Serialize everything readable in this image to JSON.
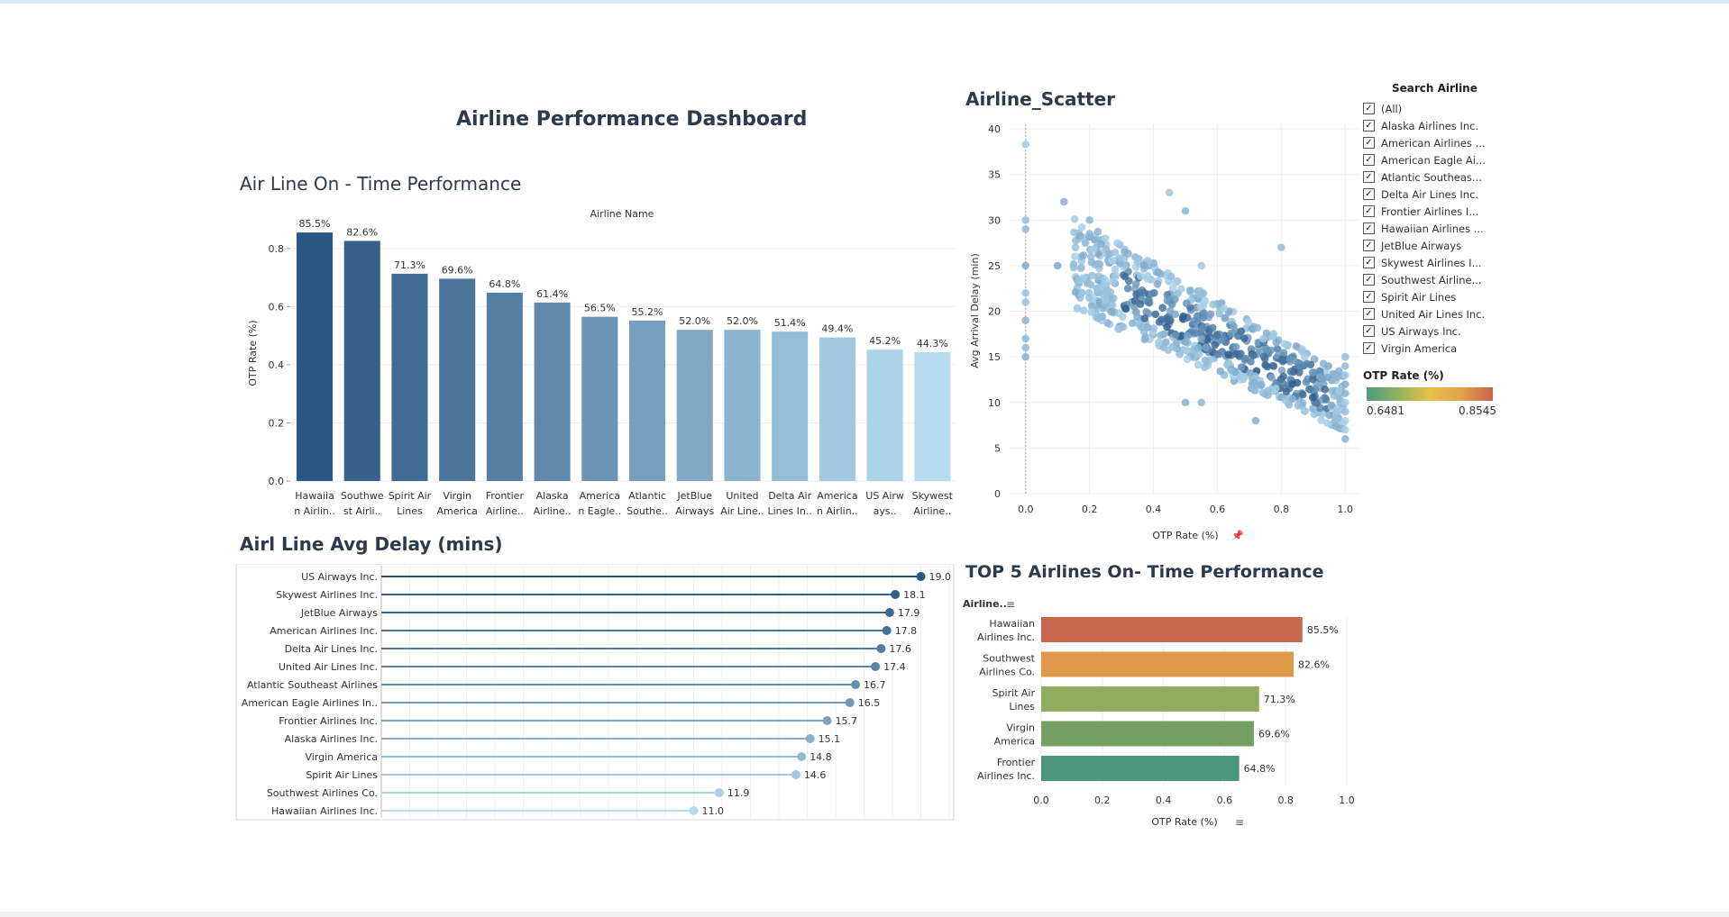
{
  "dashboard_title": "Airline Performance Dashboard",
  "bar_chart": {
    "title": "Air Line On - Time Performance",
    "chart_data": {
      "type": "bar",
      "title": "Air Line On - Time Performance",
      "subtitle": "Airline Name",
      "ylabel": "OTP Rate (%)",
      "ylim": [
        0,
        0.88
      ],
      "yticks": [
        "0.0",
        "0.2",
        "0.4",
        "0.6",
        "0.8"
      ],
      "categories": [
        [
          "Hawaiia",
          "n Airlin.."
        ],
        [
          "Southwe",
          "st Airli.."
        ],
        [
          "Spirit Air",
          "Lines"
        ],
        [
          "Virgin",
          "America"
        ],
        [
          "Frontier",
          "Airline.."
        ],
        [
          "Alaska",
          "Airline.."
        ],
        [
          "America",
          "n Eagle.."
        ],
        [
          "Atlantic",
          "Southe.."
        ],
        [
          "JetBlue",
          "Airways"
        ],
        [
          "United",
          "Air Line.."
        ],
        [
          "Delta Air",
          "Lines In.."
        ],
        [
          "America",
          "n Airlin.."
        ],
        [
          "US Airw",
          "ays.."
        ],
        [
          "Skywest",
          "Airline.."
        ]
      ],
      "values": [
        0.855,
        0.826,
        0.713,
        0.696,
        0.648,
        0.614,
        0.565,
        0.552,
        0.52,
        0.52,
        0.514,
        0.494,
        0.452,
        0.443
      ],
      "labels": [
        "85.5%",
        "82.6%",
        "71.3%",
        "69.6%",
        "64.8%",
        "61.4%",
        "56.5%",
        "55.2%",
        "52.0%",
        "52.0%",
        "51.4%",
        "49.4%",
        "45.2%",
        "44.3%"
      ]
    }
  },
  "delay_chart": {
    "title": "Airl Line Avg Delay (mins)",
    "chart_data": {
      "type": "bar",
      "categories": [
        "US Airways Inc.",
        "Skywest Airlines Inc.",
        "JetBlue Airways",
        "American Airlines Inc.",
        "Delta Air Lines Inc.",
        "United Air Lines Inc.",
        "Atlantic Southeast Airlines",
        "American Eagle Airlines In..",
        "Frontier Airlines Inc.",
        "Alaska Airlines Inc.",
        "Virgin America",
        "Spirit Air Lines",
        "Southwest Airlines Co.",
        "Hawaiian Airlines Inc."
      ],
      "values": [
        19.0,
        18.1,
        17.9,
        17.8,
        17.6,
        17.4,
        16.7,
        16.5,
        15.7,
        15.1,
        14.8,
        14.6,
        11.9,
        11.0
      ],
      "labels": [
        "19.0",
        "18.1",
        "17.9",
        "17.8",
        "17.6",
        "17.4",
        "16.7",
        "16.5",
        "15.7",
        "15.1",
        "14.8",
        "14.6",
        "11.9",
        "11.0"
      ],
      "xlim": [
        0,
        20
      ]
    }
  },
  "scatter_chart": {
    "title": "Airline_Scatter",
    "chart_data": {
      "type": "scatter",
      "xlabel": "OTP Rate (%)",
      "ylabel": "Avg Arrival Delay (min)",
      "xlim": [
        -0.05,
        1.05
      ],
      "ylim": [
        0,
        40
      ],
      "xticks": [
        "0.0",
        "0.2",
        "0.4",
        "0.6",
        "0.8",
        "1.0"
      ],
      "yticks": [
        "0",
        "5",
        "10",
        "15",
        "20",
        "25",
        "30",
        "35",
        "40"
      ]
    }
  },
  "filter": {
    "title": "Search Airline",
    "check_mark": "✓",
    "items": [
      "(All)",
      "Alaska Airlines Inc.",
      "American Airlines ...",
      "American Eagle Ai...",
      "Atlantic Southeas...",
      "Delta Air Lines Inc.",
      "Frontier Airlines I...",
      "Hawaiian Airlines ...",
      "JetBlue Airways",
      "Skywest Airlines I...",
      "Southwest Airline...",
      "Spirit Air Lines",
      "United Air Lines Inc.",
      "US Airways Inc.",
      "Virgin America"
    ]
  },
  "legend": {
    "title": "OTP Rate (%)",
    "min": "0.6481",
    "max": "0.8545"
  },
  "top5_chart": {
    "title": "TOP 5 Airlines On- Time Performance",
    "row_header": "Airline..",
    "chart_data": {
      "type": "bar",
      "xlabel": "OTP Rate (%)",
      "xlim": [
        0,
        1.0
      ],
      "xticks": [
        "0.0",
        "0.2",
        "0.4",
        "0.6",
        "0.8",
        "1.0"
      ],
      "categories": [
        [
          "Hawaiian",
          "Airlines Inc."
        ],
        [
          "Southwest",
          "Airlines Co."
        ],
        [
          "Spirit Air",
          "Lines"
        ],
        [
          "Virgin",
          "America"
        ],
        [
          "Frontier",
          "Airlines Inc."
        ]
      ],
      "values": [
        0.855,
        0.826,
        0.713,
        0.696,
        0.648
      ],
      "labels": [
        "85.5%",
        "82.6%",
        "71.3%",
        "69.6%",
        "64.8%"
      ],
      "colors": [
        "#c6674e",
        "#e0994a",
        "#8fad5c",
        "#76a062",
        "#4c977e"
      ]
    }
  },
  "colors": {
    "title": "#2b3a4d",
    "bar_dark": "#2a5783",
    "bar_light": "#b7dcef",
    "scatter_light": "#a9d1ea",
    "scatter_dark": "#2f5d8c"
  }
}
